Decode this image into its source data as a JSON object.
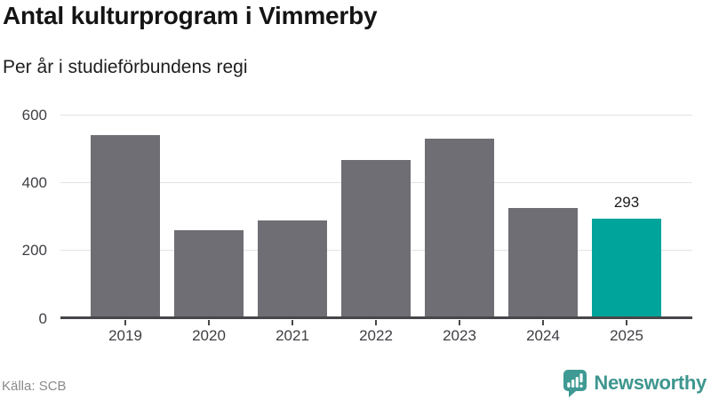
{
  "chart_data": {
    "type": "bar",
    "title": "Antal kulturprogram i Vimmerby",
    "subtitle": "Per år i studieförbundens regi",
    "categories": [
      "2019",
      "2020",
      "2021",
      "2022",
      "2023",
      "2024",
      "2025"
    ],
    "values": [
      540,
      260,
      289,
      467,
      530,
      325,
      293
    ],
    "highlight_index": 6,
    "data_labels": {
      "6": "293"
    },
    "ylim": [
      0,
      600
    ],
    "yticks": [
      0,
      200,
      400,
      600
    ],
    "grid": true,
    "legend": "none",
    "bar_color": "#6e6e74",
    "highlight_color": "#00a49a",
    "gridline_color": "#e3e3e3",
    "axis_color": "#46464b"
  },
  "footer": {
    "source": "Källa: SCB",
    "brand": "Newsworthy",
    "brand_color": "#3e968f"
  }
}
